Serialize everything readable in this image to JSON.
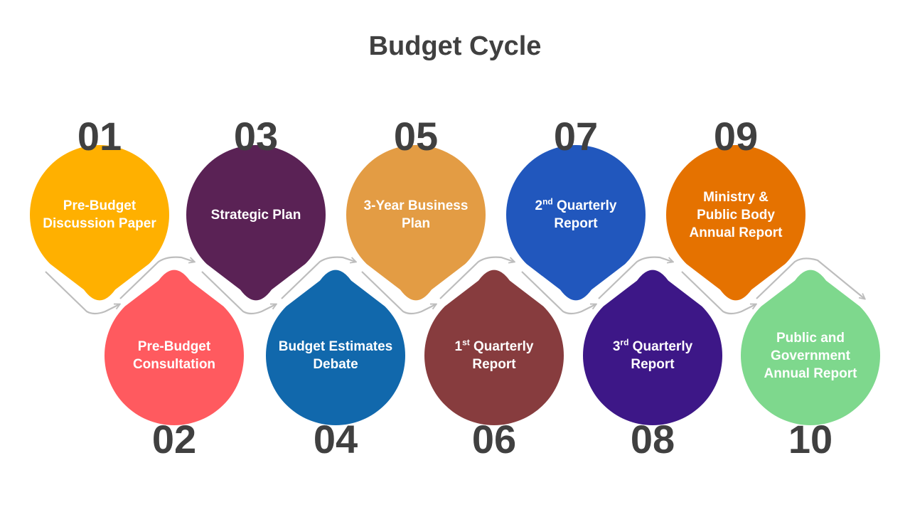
{
  "title": "Budget Cycle",
  "colors": {
    "numbers": "#404040",
    "connector": "#bdbdbd"
  },
  "steps": [
    {
      "number": "01",
      "lines": [
        "Pre-Budget",
        "Discussion Paper"
      ],
      "color": "#FFB000"
    },
    {
      "number": "02",
      "lines": [
        "Pre-Budget",
        "Consultation"
      ],
      "color": "#FF5A5F"
    },
    {
      "number": "03",
      "lines": [
        "Strategic Plan"
      ],
      "color": "#5A2255"
    },
    {
      "number": "04",
      "lines": [
        "Budget Estimates",
        "Debate"
      ],
      "color": "#1168AC"
    },
    {
      "number": "05",
      "lines": [
        "3-Year Business",
        "Plan"
      ],
      "color": "#E39C44"
    },
    {
      "number": "06",
      "ord": "1",
      "sup": "st",
      "lines": [
        " Quarterly",
        "Report"
      ],
      "color": "#873C3E"
    },
    {
      "number": "07",
      "ord": "2",
      "sup": "nd",
      "lines": [
        " Quarterly",
        "Report"
      ],
      "color": "#2157BD"
    },
    {
      "number": "08",
      "ord": "3",
      "sup": "rd",
      "lines": [
        " Quarterly",
        "Report"
      ],
      "color": "#3D1787"
    },
    {
      "number": "09",
      "lines": [
        "Ministry &",
        "Public Body",
        "Annual Report"
      ],
      "color": "#E57200"
    },
    {
      "number": "10",
      "lines": [
        "Public and",
        "Government",
        "Annual Report"
      ],
      "color": "#7ED88D"
    }
  ]
}
